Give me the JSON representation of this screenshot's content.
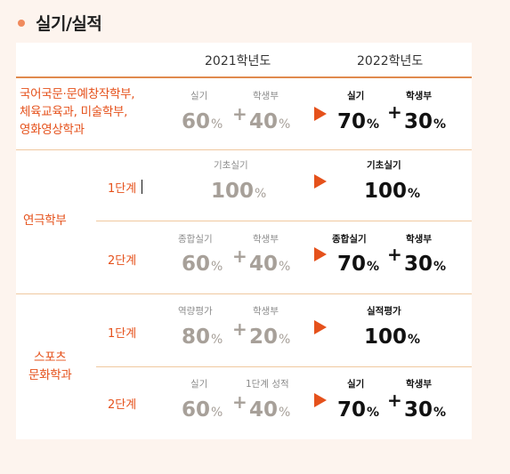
{
  "section": {
    "title": "실기/실적"
  },
  "headers": {
    "year_2021": "2021학년도",
    "year_2022": "2022학년도"
  },
  "rows": {
    "r1": {
      "category": [
        "국어국문·문예창작학부,",
        "체육교육과, 미술학부,",
        "영화영상학과"
      ],
      "old": {
        "label_a": "실기",
        "label_b": "학생부",
        "value_a": "60",
        "value_b": "40"
      },
      "new": {
        "label_a": "실기",
        "label_b": "학생부",
        "value_a": "70",
        "value_b": "30"
      }
    },
    "r2": {
      "step": "1단계",
      "old": {
        "label_a": "기초실기",
        "value_a": "100"
      },
      "new": {
        "label_a": "기초실기",
        "value_a": "100"
      }
    },
    "r3": {
      "step": "2단계",
      "old": {
        "label_a": "종합실기",
        "label_b": "학생부",
        "value_a": "60",
        "value_b": "40"
      },
      "new": {
        "label_a": "종합실기",
        "label_b": "학생부",
        "value_a": "70",
        "value_b": "30"
      }
    },
    "r4": {
      "step": "1단계",
      "old": {
        "label_a": "역량평가",
        "label_b": "학생부",
        "value_a": "80",
        "value_b": "20"
      },
      "new": {
        "label_a": "실적평가",
        "value_a": "100"
      }
    },
    "r5": {
      "step": "2단계",
      "old": {
        "label_a": "실기",
        "label_b": "1단계 성적",
        "value_a": "60",
        "value_b": "40"
      },
      "new": {
        "label_a": "실기",
        "label_b": "학생부",
        "value_a": "70",
        "value_b": "30"
      }
    }
  },
  "groups": {
    "theater": "연극학부",
    "sports": [
      "스포츠",
      "문화학과"
    ]
  },
  "symbols": {
    "percent": "%",
    "plus": "+"
  },
  "colors": {
    "accent": "#e5511b",
    "old_value": "#a7a099",
    "divider": "#f0c89f",
    "background": "#fdf4ee"
  }
}
